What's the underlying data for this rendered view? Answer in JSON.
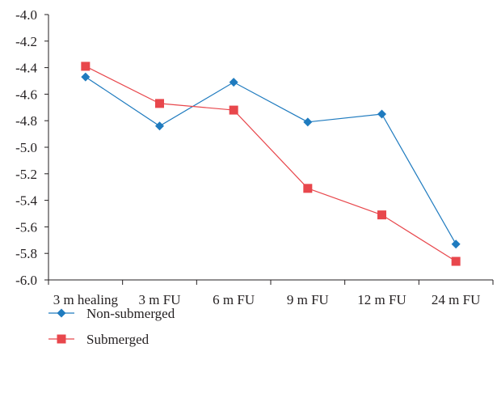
{
  "chart_data": {
    "type": "line",
    "title": "",
    "xlabel": "",
    "ylabel": "",
    "categories": [
      "3 m healing",
      "3 m FU",
      "6 m FU",
      "9 m FU",
      "12 m FU",
      "24 m FU"
    ],
    "ylim": [
      -6.0,
      -4.0
    ],
    "yticks": [
      "-4.0",
      "-4.2",
      "-4.4",
      "-4.6",
      "-4.8",
      "-5.0",
      "-5.2",
      "-5.4",
      "-5.6",
      "-5.8",
      "-6.0"
    ],
    "grid": false,
    "legend_position": "bottom-left",
    "series": [
      {
        "name": "Non-submerged",
        "color": "#1f7bbf",
        "marker": "diamond",
        "values": [
          -4.47,
          -4.84,
          -4.51,
          -4.81,
          -4.75,
          -5.73
        ]
      },
      {
        "name": "Submerged",
        "color": "#e8474c",
        "marker": "square",
        "values": [
          -4.39,
          -4.67,
          -4.72,
          -5.31,
          -5.51,
          -5.86
        ]
      }
    ]
  }
}
